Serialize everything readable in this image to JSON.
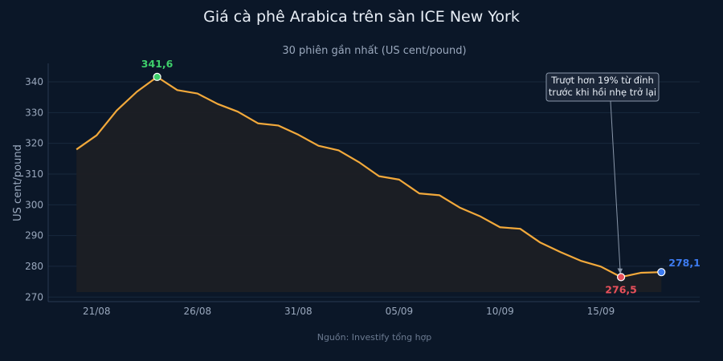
{
  "colors": {
    "background": "#0b1728",
    "line": "#f2a93b",
    "area_fill": "#1c1f24",
    "grid": "#18283d",
    "axis_text": "#9aa8bd",
    "title": "#e8eef6",
    "peak": "#3ecf6b",
    "trough": "#e8505b",
    "last": "#3d7bf0",
    "source": "#6b7a90"
  },
  "chart_data": {
    "type": "area",
    "title": "Giá cà phê Arabica trên sàn ICE New York",
    "subtitle": "30 phiên gần nhất (US cent/pound)",
    "xlabel": "",
    "ylabel": "US cent/pound",
    "ylim": [
      268.5,
      346
    ],
    "y_ticks": [
      270,
      280,
      290,
      300,
      310,
      320,
      330,
      340
    ],
    "x_tick_labels": [
      "21/08",
      "26/08",
      "31/08",
      "05/09",
      "10/09",
      "15/09"
    ],
    "x_tick_values": [
      1,
      6,
      11,
      16,
      21,
      26
    ],
    "x_range": [
      -1.4,
      30.9
    ],
    "series": [
      {
        "x": [
          0,
          1,
          2,
          3,
          4,
          5,
          6,
          7,
          8,
          9,
          10,
          11,
          12,
          13,
          14,
          15,
          16,
          17,
          18,
          19,
          20,
          21,
          22,
          23,
          24,
          25,
          26,
          27,
          28,
          29
        ],
        "values": [
          318.0,
          322.6,
          330.7,
          336.8,
          341.6,
          337.3,
          336.2,
          332.8,
          330.3,
          326.5,
          325.8,
          322.8,
          319.2,
          317.7,
          313.9,
          309.3,
          308.2,
          303.7,
          303.1,
          299.1,
          296.3,
          292.7,
          292.2,
          287.7,
          284.6,
          281.8,
          279.9,
          276.5,
          277.9,
          278.1
        ]
      }
    ],
    "annotations": [
      {
        "label": "341,6",
        "x": 4,
        "y": 341.6,
        "role": "peak"
      },
      {
        "label": "276,5",
        "x": 27,
        "y": 276.5,
        "role": "trough"
      },
      {
        "label": "278,1",
        "x": 29,
        "y": 278.1,
        "role": "last"
      }
    ],
    "callout": {
      "lines": [
        "Trượt hơn 19% từ đỉnh",
        "trước khi hồi nhẹ trở lại"
      ],
      "target_x": 27,
      "target_y": 276.5
    },
    "source": "Nguồn: Investify tổng hợp",
    "grid": true,
    "legend": "none"
  }
}
